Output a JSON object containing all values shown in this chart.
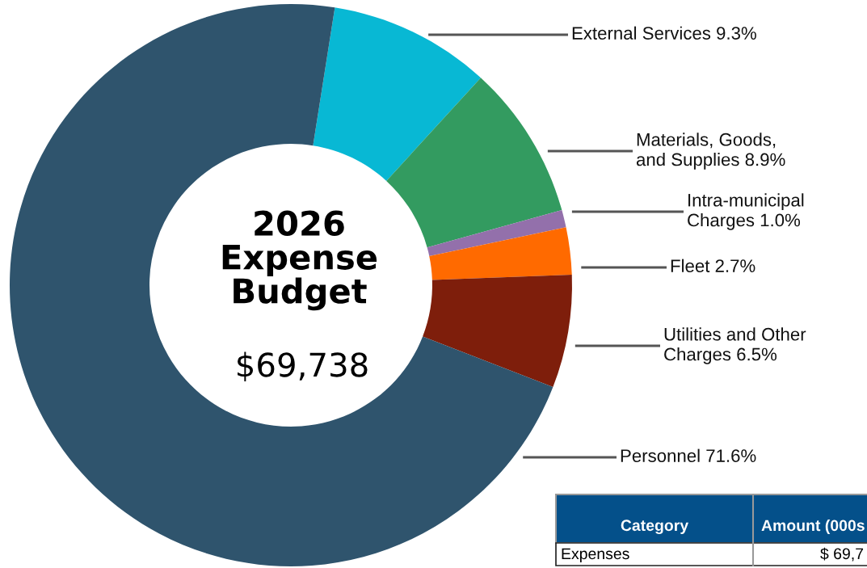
{
  "chart_data": {
    "type": "donut",
    "title": "2026\nExpense\nBudget",
    "subtitle": "$69,738",
    "categories": [
      "External Services",
      "Materials, Goods,\nand Supplies",
      "Intra-municipal\nCharges",
      "Fleet",
      "Utilities and Other\nCharges",
      "Personnel"
    ],
    "values": [
      9.3,
      8.9,
      1.0,
      2.7,
      6.5,
      71.6
    ],
    "value_labels": [
      "9.3%",
      "8.9%",
      "1.0%",
      "2.7%",
      "6.5%",
      "71.6%"
    ],
    "colors": [
      "#08b8d4",
      "#339b60",
      "#9370ab",
      "#ff6a00",
      "#7e1e0b",
      "#2f546d"
    ],
    "annotations": [
      "Category",
      "Amount (000s",
      "Expenses",
      "$ 69,7"
    ]
  }
}
